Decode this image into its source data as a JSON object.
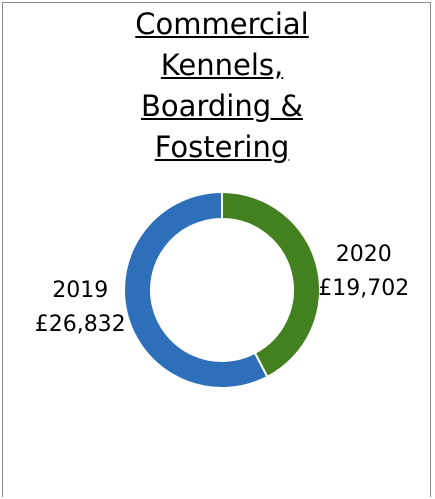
{
  "chart_data": {
    "type": "donut",
    "title": "Commercial Kennels, Boarding & Fostering",
    "categories": [
      "2020",
      "2019"
    ],
    "values": [
      19702,
      26832
    ],
    "value_labels": [
      "£19,702",
      "£26,832"
    ],
    "colors": [
      "#43801f",
      "#2e6fba"
    ]
  }
}
